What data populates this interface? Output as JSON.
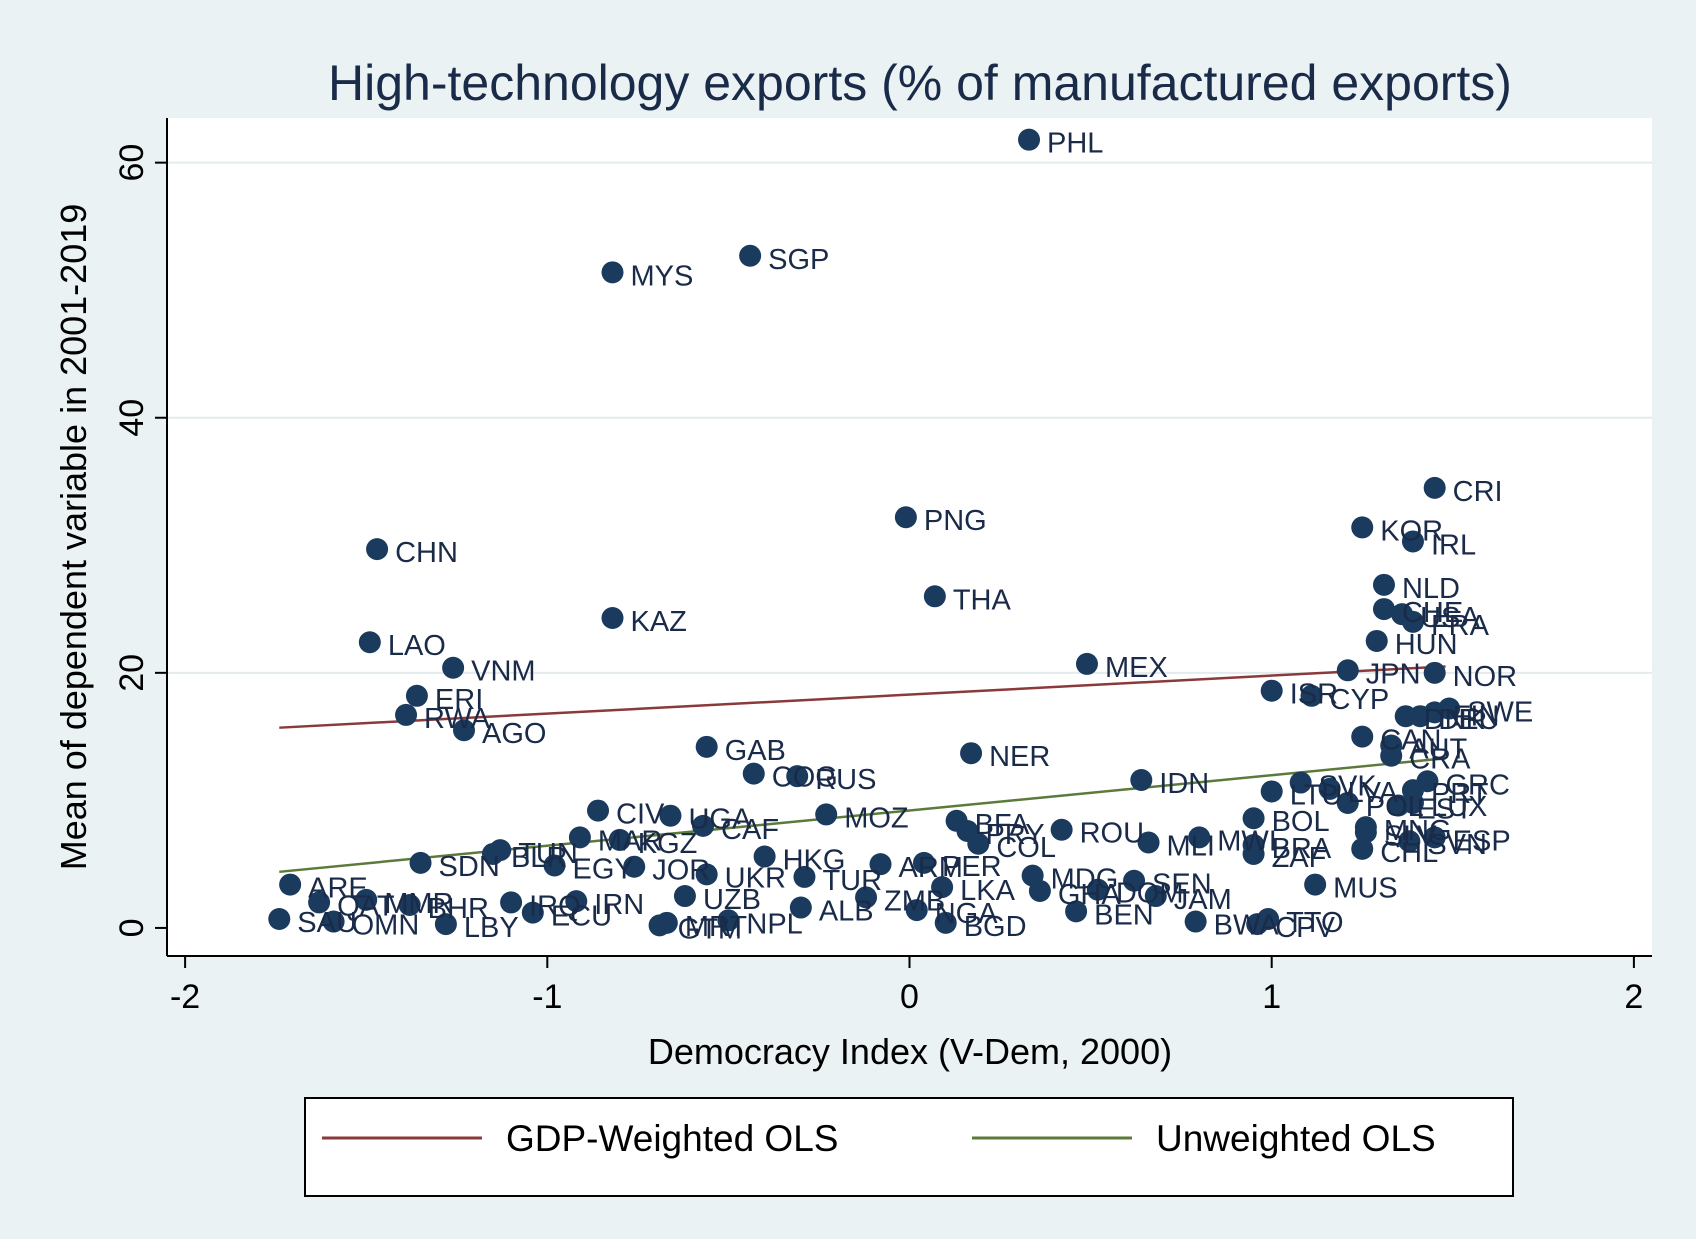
{
  "chart_data": {
    "type": "scatter",
    "title": "High-technology exports (% of manufactured exports)",
    "xlabel": "Democracy Index (V-Dem, 2000)",
    "ylabel": "Mean of dependent variable in 2001-2019",
    "xlim": [
      -2.05,
      2.05
    ],
    "ylim": [
      -2.2,
      63.5
    ],
    "xticks": [
      -2,
      -1,
      0,
      1,
      2
    ],
    "yticks": [
      0,
      20,
      40,
      60
    ],
    "xtick_labels": [
      "-2",
      "-1",
      "0",
      "1",
      "2"
    ],
    "ytick_labels": [
      "0",
      "20",
      "40",
      "60"
    ],
    "grid": "horizontal",
    "legend_position": "bottom",
    "colors": {
      "points": "#1a3a5e",
      "weighted": "#8b3a3a",
      "unweighted": "#5c7a3a",
      "background": "#eaf2f3",
      "plot_background": "#ffffff"
    },
    "points": [
      {
        "label": "PHL",
        "x": 0.33,
        "y": 61.8
      },
      {
        "label": "SGP",
        "x": -0.44,
        "y": 52.7
      },
      {
        "label": "MYS",
        "x": -0.82,
        "y": 51.4
      },
      {
        "label": "CRI",
        "x": 1.45,
        "y": 34.5
      },
      {
        "label": "PNG",
        "x": -0.01,
        "y": 32.2
      },
      {
        "label": "KOR",
        "x": 1.25,
        "y": 31.4
      },
      {
        "label": "IRL",
        "x": 1.39,
        "y": 30.3
      },
      {
        "label": "CHN",
        "x": -1.47,
        "y": 29.7
      },
      {
        "label": "NLD",
        "x": 1.31,
        "y": 26.9
      },
      {
        "label": "THA",
        "x": 0.07,
        "y": 26.0
      },
      {
        "label": "CHE",
        "x": 1.31,
        "y": 25.0
      },
      {
        "label": "USA",
        "x": 1.36,
        "y": 24.6
      },
      {
        "label": "FRA",
        "x": 1.39,
        "y": 24.0
      },
      {
        "label": "KAZ",
        "x": -0.82,
        "y": 24.3
      },
      {
        "label": "HUN",
        "x": 1.29,
        "y": 22.5
      },
      {
        "label": "LAO",
        "x": -1.49,
        "y": 22.4
      },
      {
        "label": "MEX",
        "x": 0.49,
        "y": 20.7
      },
      {
        "label": "VNM",
        "x": -1.26,
        "y": 20.4
      },
      {
        "label": "JPN",
        "x": 1.21,
        "y": 20.2
      },
      {
        "label": "NOR",
        "x": 1.45,
        "y": 20.0
      },
      {
        "label": "ISR",
        "x": 1.0,
        "y": 18.6
      },
      {
        "label": "CYP",
        "x": 1.11,
        "y": 18.2
      },
      {
        "label": "ERI",
        "x": -1.36,
        "y": 18.2
      },
      {
        "label": "RWA",
        "x": -1.39,
        "y": 16.7
      },
      {
        "label": "AGO",
        "x": -1.23,
        "y": 15.5
      },
      {
        "label": "DNK",
        "x": 1.37,
        "y": 16.6
      },
      {
        "label": "SWE",
        "x": 1.49,
        "y": 17.2
      },
      {
        "label": "FIN",
        "x": 1.45,
        "y": 16.9
      },
      {
        "label": "DEU",
        "x": 1.41,
        "y": 16.6
      },
      {
        "label": "CAN",
        "x": 1.25,
        "y": 15.0
      },
      {
        "label": "AUT",
        "x": 1.33,
        "y": 14.3
      },
      {
        "label": "GAB",
        "x": -0.56,
        "y": 14.2
      },
      {
        "label": "NER",
        "x": 0.17,
        "y": 13.7
      },
      {
        "label": "CRA",
        "x": 1.33,
        "y": 13.5
      },
      {
        "label": "COG",
        "x": -0.43,
        "y": 12.1
      },
      {
        "label": "RUS",
        "x": -0.31,
        "y": 11.9
      },
      {
        "label": "IDN",
        "x": 0.64,
        "y": 11.6
      },
      {
        "label": "GRC",
        "x": 1.43,
        "y": 11.5
      },
      {
        "label": "SVK",
        "x": 1.08,
        "y": 11.4
      },
      {
        "label": "LVA",
        "x": 1.16,
        "y": 10.9
      },
      {
        "label": "PRT",
        "x": 1.39,
        "y": 10.8
      },
      {
        "label": "LTU",
        "x": 1.0,
        "y": 10.7
      },
      {
        "label": "POL",
        "x": 1.21,
        "y": 9.8
      },
      {
        "label": "EST",
        "x": 1.35,
        "y": 9.6
      },
      {
        "label": "LUX",
        "x": 1.39,
        "y": 9.8
      },
      {
        "label": "CIV",
        "x": -0.86,
        "y": 9.2
      },
      {
        "label": "MOZ",
        "x": -0.23,
        "y": 8.9
      },
      {
        "label": "UGA",
        "x": -0.66,
        "y": 8.8
      },
      {
        "label": "BFA",
        "x": 0.13,
        "y": 8.4
      },
      {
        "label": "BOL",
        "x": 0.95,
        "y": 8.6
      },
      {
        "label": "CAF",
        "x": -0.57,
        "y": 8.0
      },
      {
        "label": "PRY",
        "x": 0.16,
        "y": 7.6
      },
      {
        "label": "ROU",
        "x": 0.42,
        "y": 7.7
      },
      {
        "label": "MAR",
        "x": -0.91,
        "y": 7.1
      },
      {
        "label": "KGZ",
        "x": -0.8,
        "y": 6.9
      },
      {
        "label": "MWI",
        "x": 0.8,
        "y": 7.1
      },
      {
        "label": "MLI",
        "x": 0.66,
        "y": 6.7
      },
      {
        "label": "COL",
        "x": 0.19,
        "y": 6.6
      },
      {
        "label": "MNG",
        "x": 1.26,
        "y": 7.9
      },
      {
        "label": "SLV",
        "x": 1.26,
        "y": 7.5
      },
      {
        "label": "BRA",
        "x": 0.95,
        "y": 6.5
      },
      {
        "label": "ZAF",
        "x": 0.95,
        "y": 5.8
      },
      {
        "label": "ESP",
        "x": 1.45,
        "y": 7.1
      },
      {
        "label": "SVN",
        "x": 1.38,
        "y": 6.8
      },
      {
        "label": "CHL",
        "x": 1.25,
        "y": 6.2
      },
      {
        "label": "TUN",
        "x": -1.13,
        "y": 6.1
      },
      {
        "label": "BLR",
        "x": -1.15,
        "y": 5.8
      },
      {
        "label": "SDN",
        "x": -1.35,
        "y": 5.1
      },
      {
        "label": "HKG",
        "x": -0.4,
        "y": 5.6
      },
      {
        "label": "EGY",
        "x": -0.98,
        "y": 4.9
      },
      {
        "label": "JOR",
        "x": -0.76,
        "y": 4.8
      },
      {
        "label": "UKR",
        "x": -0.56,
        "y": 4.2
      },
      {
        "label": "ARM",
        "x": -0.08,
        "y": 5.0
      },
      {
        "label": "PER",
        "x": 0.04,
        "y": 5.1
      },
      {
        "label": "TUR",
        "x": -0.29,
        "y": 4.0
      },
      {
        "label": "MDG",
        "x": 0.34,
        "y": 4.1
      },
      {
        "label": "SEN",
        "x": 0.62,
        "y": 3.7
      },
      {
        "label": "ARE",
        "x": -1.71,
        "y": 3.4
      },
      {
        "label": "MUS",
        "x": 1.12,
        "y": 3.4
      },
      {
        "label": "LKA",
        "x": 0.09,
        "y": 3.2
      },
      {
        "label": "GHA",
        "x": 0.36,
        "y": 2.9
      },
      {
        "label": "DOM",
        "x": 0.52,
        "y": 3.0
      },
      {
        "label": "JAM",
        "x": 0.68,
        "y": 2.5
      },
      {
        "label": "ZMB",
        "x": -0.12,
        "y": 2.4
      },
      {
        "label": "MMR",
        "x": -1.5,
        "y": 2.2
      },
      {
        "label": "QAT",
        "x": -1.63,
        "y": 2.0
      },
      {
        "label": "IRN",
        "x": -0.92,
        "y": 2.1
      },
      {
        "label": "IRQ",
        "x": -1.1,
        "y": 2.0
      },
      {
        "label": "BHR",
        "x": -1.38,
        "y": 1.8
      },
      {
        "label": "ALB",
        "x": -0.3,
        "y": 1.6
      },
      {
        "label": "NGA",
        "x": 0.02,
        "y": 1.4
      },
      {
        "label": "UZB",
        "x": -0.62,
        "y": 2.5
      },
      {
        "label": "ECU",
        "x": -1.04,
        "y": 1.2
      },
      {
        "label": "BEN",
        "x": 0.46,
        "y": 1.3
      },
      {
        "label": "NPL",
        "x": -0.5,
        "y": 0.6
      },
      {
        "label": "MRT",
        "x": -0.67,
        "y": 0.4
      },
      {
        "label": "BGD",
        "x": 0.1,
        "y": 0.4
      },
      {
        "label": "BWA",
        "x": 0.79,
        "y": 0.5
      },
      {
        "label": "TTO",
        "x": 0.99,
        "y": 0.7
      },
      {
        "label": "CPV",
        "x": 0.96,
        "y": 0.3
      },
      {
        "label": "SAU",
        "x": -1.74,
        "y": 0.7
      },
      {
        "label": "OMN",
        "x": -1.59,
        "y": 0.5
      },
      {
        "label": "LBY",
        "x": -1.28,
        "y": 0.3
      },
      {
        "label": "GTM",
        "x": -0.69,
        "y": 0.2
      }
    ],
    "series": [
      {
        "name": "GDP-Weighted OLS",
        "type": "line",
        "x": [
          -1.74,
          1.48
        ],
        "y": [
          15.7,
          20.5
        ]
      },
      {
        "name": "Unweighted OLS",
        "type": "line",
        "x": [
          -1.74,
          1.48
        ],
        "y": [
          4.4,
          13.3
        ]
      }
    ]
  }
}
